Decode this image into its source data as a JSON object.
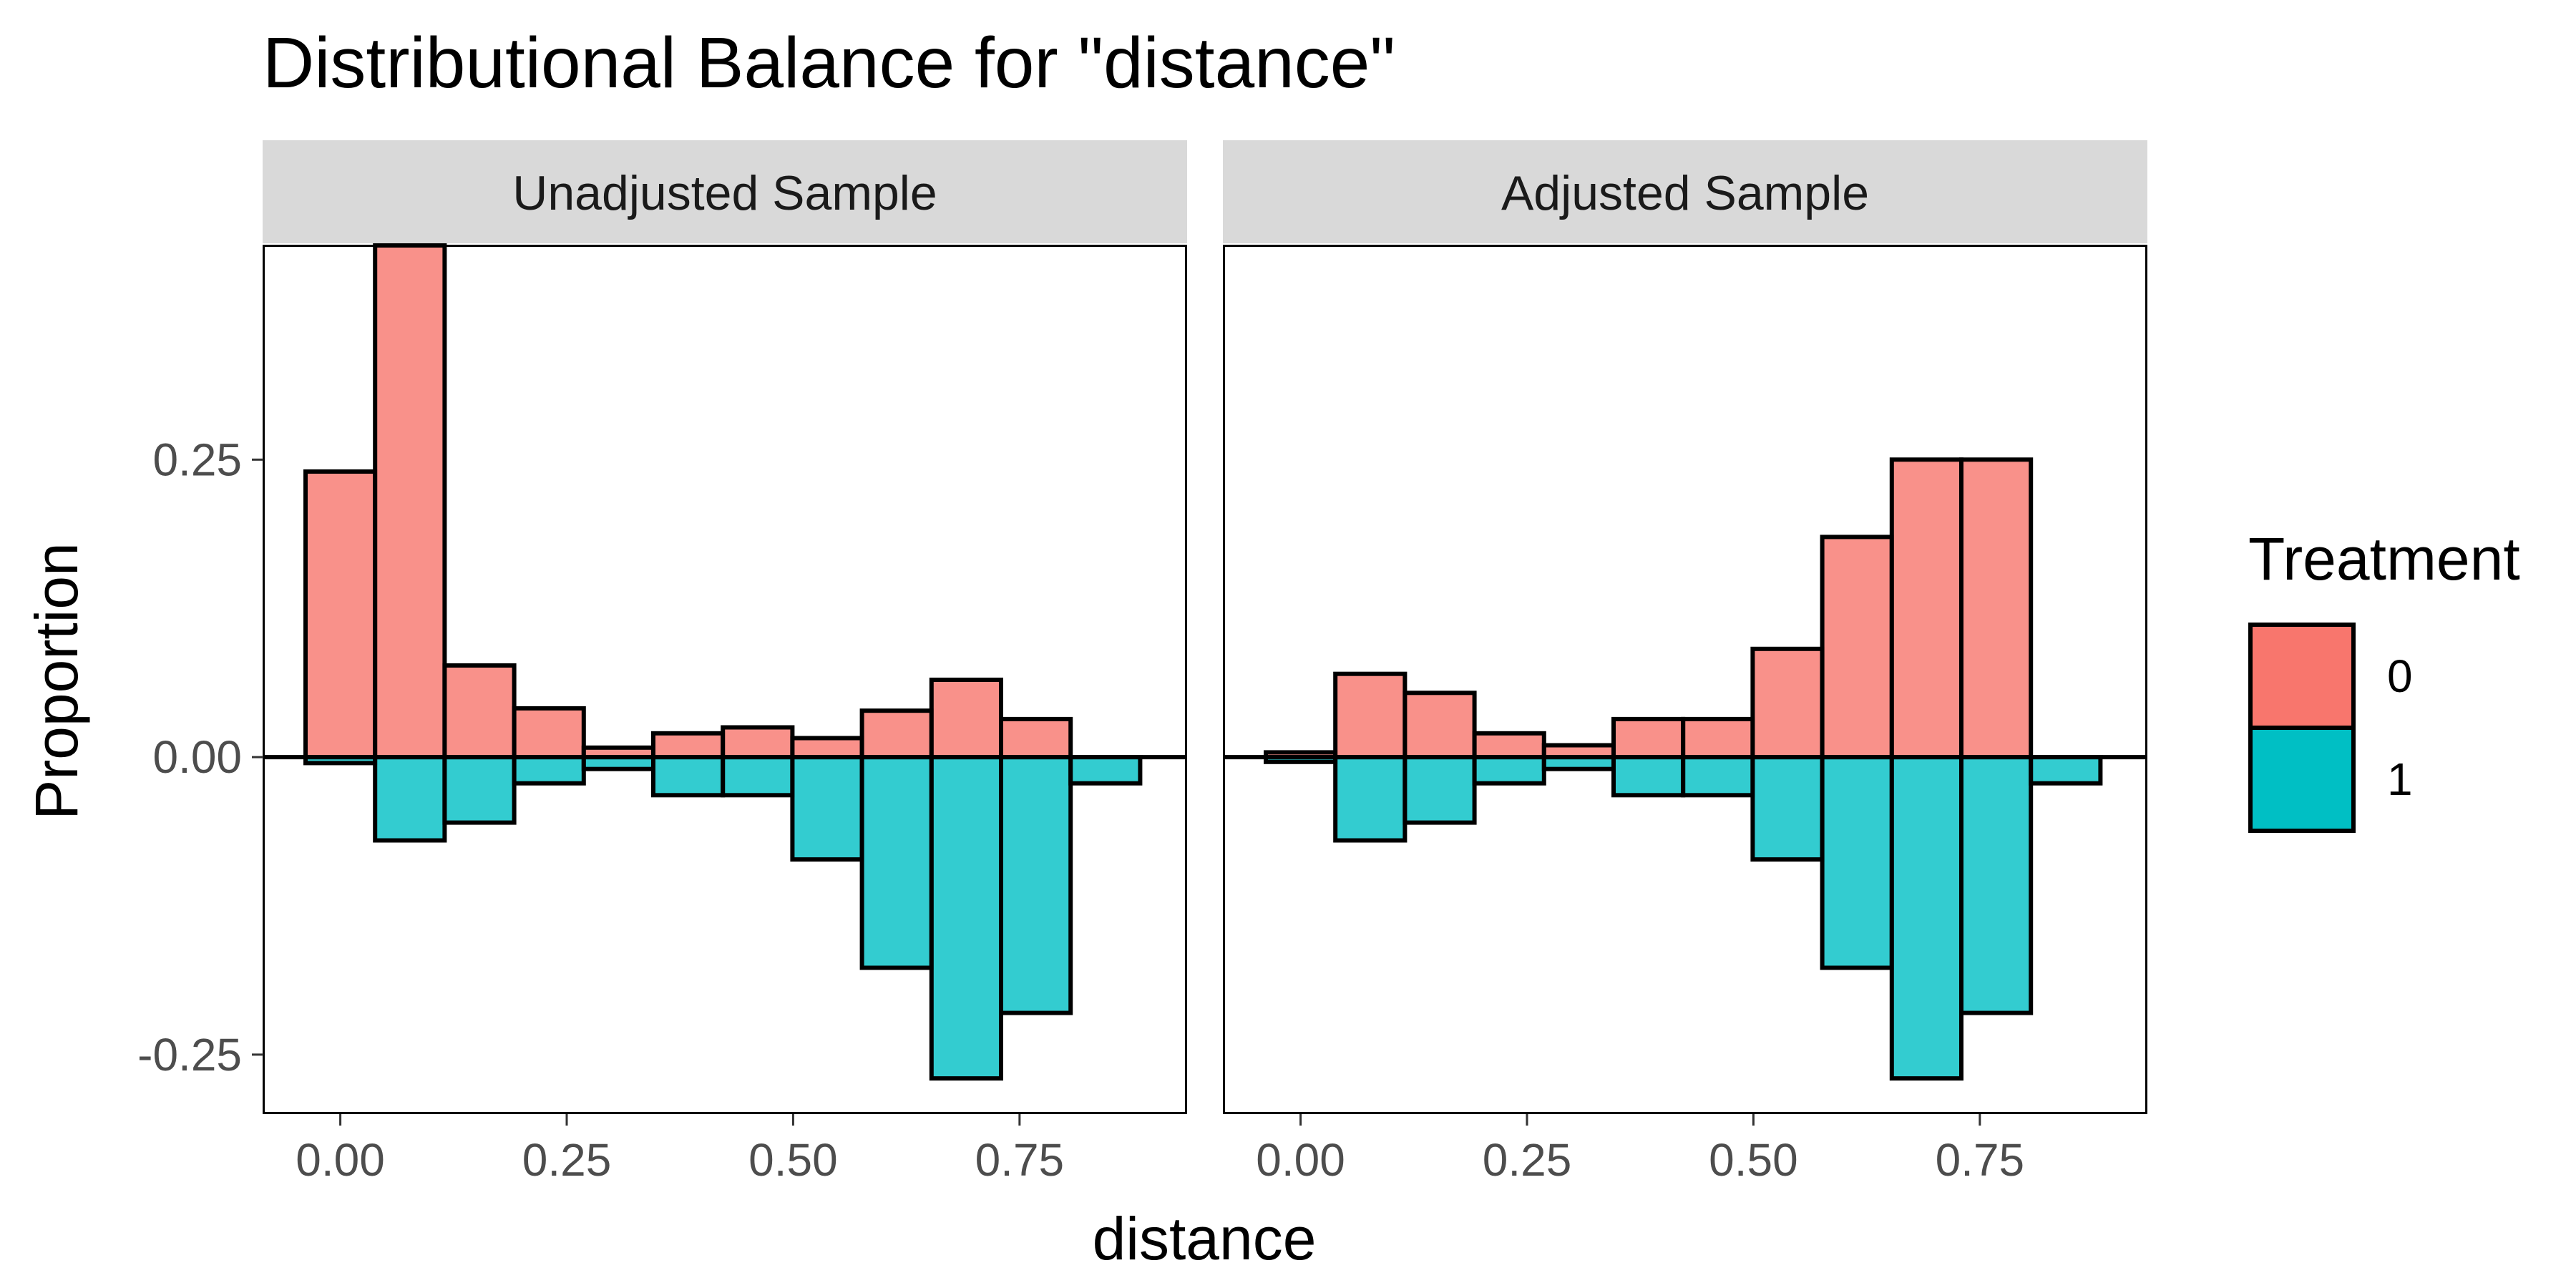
{
  "chart_data": {
    "type": "bar",
    "title": "Distributional Balance for \"distance\"",
    "xlabel": "distance",
    "ylabel": "Proportion",
    "xlim": [
      -0.085,
      0.935
    ],
    "ylim": [
      -0.3,
      0.43
    ],
    "x_ticks": [
      0.0,
      0.25,
      0.5,
      0.75
    ],
    "x_tick_labels": [
      "0.00",
      "0.25",
      "0.50",
      "0.75"
    ],
    "y_ticks": [
      0.25,
      0.0,
      -0.25
    ],
    "y_tick_labels": [
      "0.25",
      "0.00",
      "-0.25"
    ],
    "bin_width": 0.0768,
    "bin_centers": [
      0.0,
      0.0768,
      0.1536,
      0.2304,
      0.3072,
      0.384,
      0.4608,
      0.5376,
      0.6144,
      0.6912,
      0.768,
      0.8448
    ],
    "grid": false,
    "legend": {
      "title": "Treatment",
      "position": "right",
      "entries": [
        {
          "label": "0",
          "color": "#F8766D"
        },
        {
          "label": "1",
          "color": "#00BFC4"
        }
      ]
    },
    "colors": {
      "treat0": "#F8766D",
      "treat1": "#00BFC4",
      "strip_bg": "#d9d9d9"
    },
    "panels": [
      {
        "strip": "Unadjusted Sample",
        "series": [
          {
            "name": "0",
            "values": [
              0.24,
              0.43,
              0.077,
              0.041,
              0.008,
              0.02,
              0.025,
              0.016,
              0.039,
              0.065,
              0.032,
              0.0
            ]
          },
          {
            "name": "1",
            "values": [
              -0.005,
              -0.07,
              -0.055,
              -0.022,
              -0.01,
              -0.032,
              -0.032,
              -0.086,
              -0.177,
              -0.27,
              -0.215,
              -0.022
            ]
          }
        ]
      },
      {
        "strip": "Adjusted Sample",
        "series": [
          {
            "name": "0",
            "values": [
              0.004,
              0.07,
              0.054,
              0.02,
              0.01,
              0.032,
              0.032,
              0.091,
              0.185,
              0.25,
              0.25,
              0.0
            ]
          },
          {
            "name": "1",
            "values": [
              -0.004,
              -0.07,
              -0.055,
              -0.022,
              -0.01,
              -0.032,
              -0.032,
              -0.086,
              -0.177,
              -0.27,
              -0.215,
              -0.022
            ]
          }
        ]
      }
    ]
  }
}
